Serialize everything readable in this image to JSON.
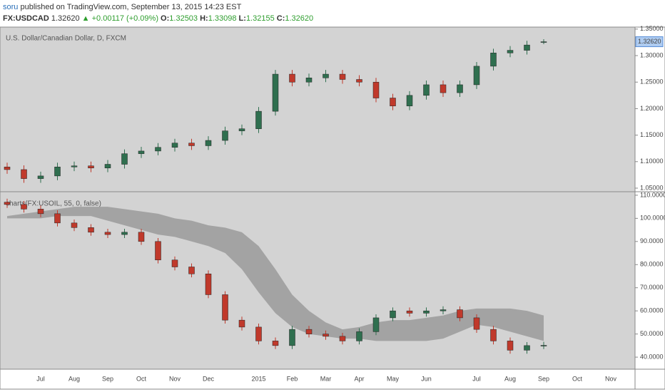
{
  "header": {
    "author": "soru",
    "published": "published on TradingView.com, September 13, 2015 14:23 EST",
    "symbol": "FX:USDCAD",
    "last": "1.32620",
    "change": "▲ +0.00117 (+0.09%)",
    "ohlc": [
      {
        "label": "O:",
        "value": "1.32503"
      },
      {
        "label": "H:",
        "value": "1.33098"
      },
      {
        "label": "L:",
        "value": "1.32155"
      },
      {
        "label": "C:",
        "value": "1.32620"
      }
    ]
  },
  "chart_data": {
    "type": "candlestick",
    "up_color": "#2f6f4f",
    "down_color": "#c0392b",
    "categories": [
      null,
      null,
      "Jul",
      null,
      "Aug",
      null,
      "Sep",
      null,
      "Oct",
      null,
      "Nov",
      null,
      "Dec",
      null,
      null,
      "2015",
      null,
      "Feb",
      null,
      "Mar",
      null,
      "Apr",
      null,
      "May",
      null,
      "Jun",
      null,
      null,
      "Jul",
      null,
      "Aug",
      null,
      "Sep",
      null,
      "Oct",
      null,
      "Nov"
    ],
    "panes": [
      {
        "title": "U.S. Dollar/Canadian Dollar, D, FXCM",
        "last_label": "1.32620",
        "ylim": [
          1.0446,
          1.3538
        ],
        "yticks": [
          {
            "value": 1.05,
            "label": "1.05000"
          },
          {
            "value": 1.1,
            "label": "1.10000"
          },
          {
            "value": 1.15,
            "label": "1.15000"
          },
          {
            "value": 1.2,
            "label": "1.20000"
          },
          {
            "value": 1.25,
            "label": "1.25000"
          },
          {
            "value": 1.3,
            "label": "1.30000"
          },
          {
            "value": 1.35,
            "label": "1.35000"
          }
        ],
        "open": [
          1.09,
          1.085,
          1.068,
          1.073,
          1.09,
          1.092,
          1.088,
          1.095,
          1.115,
          1.12,
          1.127,
          1.135,
          1.13,
          1.14,
          1.158,
          1.162,
          1.195,
          1.265,
          1.25,
          1.258,
          1.265,
          1.255,
          1.25,
          1.22,
          1.205,
          1.225,
          1.245,
          1.23,
          1.245,
          1.28,
          1.305,
          1.31,
          1.325,
          null,
          null,
          null,
          null
        ],
        "high": [
          1.098,
          1.093,
          1.081,
          1.098,
          1.1,
          1.1,
          1.103,
          1.123,
          1.128,
          1.135,
          1.143,
          1.143,
          1.148,
          1.166,
          1.17,
          1.203,
          1.273,
          1.273,
          1.266,
          1.273,
          1.273,
          1.263,
          1.258,
          1.228,
          1.233,
          1.253,
          1.253,
          1.253,
          1.288,
          1.313,
          1.318,
          1.328,
          1.331,
          null,
          null,
          null,
          null
        ],
        "low": [
          1.077,
          1.06,
          1.06,
          1.065,
          1.082,
          1.08,
          1.08,
          1.087,
          1.107,
          1.112,
          1.119,
          1.122,
          1.122,
          1.132,
          1.15,
          1.154,
          1.187,
          1.242,
          1.242,
          1.25,
          1.247,
          1.242,
          1.212,
          1.197,
          1.197,
          1.217,
          1.222,
          1.222,
          1.237,
          1.272,
          1.297,
          1.302,
          1.3216,
          null,
          null,
          null,
          null
        ],
        "close": [
          1.085,
          1.068,
          1.073,
          1.09,
          1.092,
          1.088,
          1.095,
          1.115,
          1.12,
          1.127,
          1.135,
          1.13,
          1.14,
          1.158,
          1.162,
          1.195,
          1.265,
          1.25,
          1.258,
          1.265,
          1.255,
          1.25,
          1.22,
          1.205,
          1.225,
          1.245,
          1.23,
          1.245,
          1.28,
          1.305,
          1.31,
          1.32,
          1.3262,
          null,
          null,
          null,
          null
        ]
      },
      {
        "title": "charts(FX:USOIL, 55, 0, false)",
        "band_color": "#a3a3a3",
        "ylim": [
          35.1,
          111.2
        ],
        "yticks": [
          {
            "value": 40,
            "label": "40.0000"
          },
          {
            "value": 50,
            "label": "50.0000"
          },
          {
            "value": 60,
            "label": "60.0000"
          },
          {
            "value": 70,
            "label": "70.0000"
          },
          {
            "value": 80,
            "label": "80.0000"
          },
          {
            "value": 90,
            "label": "90.0000"
          },
          {
            "value": 100,
            "label": "100.0000"
          },
          {
            "value": 110,
            "label": "110.0000"
          }
        ],
        "open": [
          107,
          106,
          104,
          102,
          98,
          96,
          94,
          93,
          94,
          90,
          82,
          79,
          76,
          67,
          56,
          53,
          47,
          45,
          52,
          50,
          49,
          47,
          51,
          57,
          60,
          59,
          60,
          60.5,
          57,
          52,
          47,
          43,
          45,
          null,
          null,
          null,
          null
        ],
        "high": [
          108.5,
          107.5,
          105.5,
          103.5,
          99.5,
          97.5,
          95.5,
          95.5,
          95.5,
          91.5,
          83.5,
          80.5,
          77.5,
          68.5,
          57.5,
          54.5,
          48.5,
          53.5,
          53.5,
          51.5,
          50.5,
          52.5,
          58.5,
          61.5,
          61.5,
          61.5,
          62,
          62,
          58.5,
          53.5,
          48.5,
          46.5,
          46.6,
          null,
          null,
          null,
          null
        ],
        "low": [
          104.5,
          102.5,
          100.5,
          96.5,
          94.5,
          92.5,
          91.5,
          91.5,
          88.5,
          80.5,
          77.5,
          74.5,
          65.5,
          54.5,
          51.5,
          45.5,
          43.5,
          43.5,
          48.5,
          47.5,
          45.5,
          45.5,
          49.5,
          55.5,
          57.5,
          57.5,
          58.5,
          55.5,
          50.5,
          45.5,
          41.5,
          41.5,
          43.5,
          null,
          null,
          null,
          null
        ],
        "close": [
          106,
          104,
          102,
          98,
          96,
          94,
          93,
          94,
          90,
          82,
          79,
          76,
          67,
          56,
          53,
          47,
          45,
          52,
          50,
          49,
          47,
          51,
          57,
          60,
          59,
          60,
          60.5,
          57,
          52,
          47,
          43,
          45,
          45.1,
          null,
          null,
          null,
          null
        ],
        "band": {
          "upper": [
            101,
            102,
            103,
            104,
            105,
            105,
            105,
            104,
            103,
            102,
            100,
            99,
            97,
            96,
            94,
            88,
            78,
            67,
            60,
            55,
            52,
            53,
            55,
            56,
            56,
            57,
            58,
            60,
            61,
            61,
            61,
            60,
            58,
            null,
            null,
            null,
            null
          ],
          "lower": [
            100,
            100,
            100,
            101,
            101,
            101,
            99,
            97,
            95,
            93,
            92,
            90,
            88,
            85,
            78,
            68,
            59,
            53,
            50,
            49,
            48,
            48,
            47,
            47,
            47,
            47,
            48,
            51,
            54,
            53,
            51,
            49,
            47,
            null,
            null,
            null,
            null
          ]
        }
      }
    ]
  }
}
